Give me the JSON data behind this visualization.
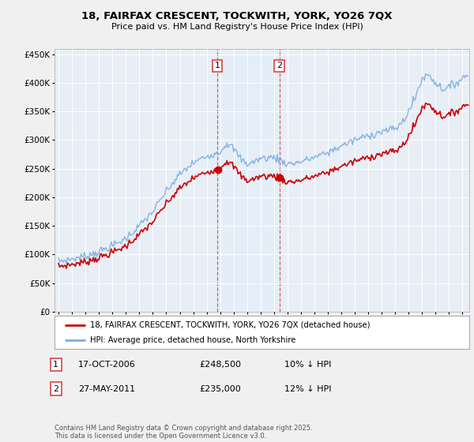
{
  "title1": "18, FAIRFAX CRESCENT, TOCKWITH, YORK, YO26 7QX",
  "title2": "Price paid vs. HM Land Registry's House Price Index (HPI)",
  "legend_line1": "18, FAIRFAX CRESCENT, TOCKWITH, YORK, YO26 7QX (detached house)",
  "legend_line2": "HPI: Average price, detached house, North Yorkshire",
  "sale1_date": "17-OCT-2006",
  "sale1_price": "£248,500",
  "sale1_hpi": "10% ↓ HPI",
  "sale2_date": "27-MAY-2011",
  "sale2_price": "£235,000",
  "sale2_hpi": "12% ↓ HPI",
  "footnote": "Contains HM Land Registry data © Crown copyright and database right 2025.\nThis data is licensed under the Open Government Licence v3.0.",
  "hpi_color": "#7aade0",
  "price_color": "#cc0000",
  "vline_color": "#dd4444",
  "shade_color": "#ddeeff",
  "sale1_year": 2006.79,
  "sale2_year": 2011.41,
  "sale1_price_val": 248500,
  "sale2_price_val": 235000,
  "ylim": [
    0,
    460000
  ],
  "xlim_start": 1994.7,
  "xlim_end": 2025.5,
  "bg_color": "#f0f0f0",
  "plot_bg": "#e8eef5",
  "grid_color": "#ffffff",
  "title_fontsize": 9.5,
  "subtitle_fontsize": 8
}
